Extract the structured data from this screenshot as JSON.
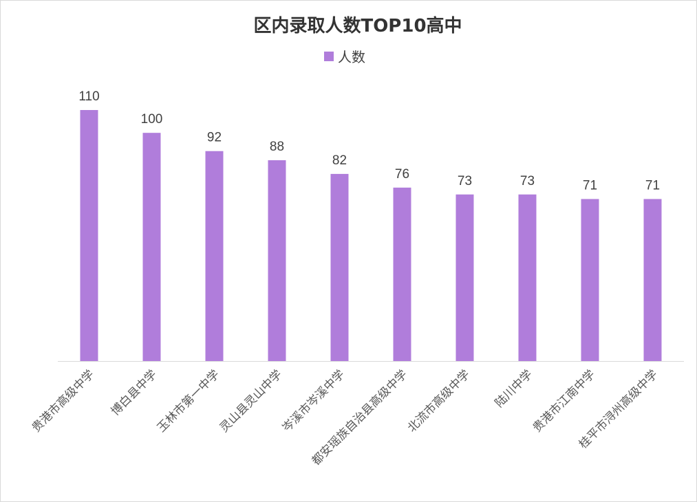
{
  "chart_data": {
    "type": "bar",
    "title": "区内录取人数TOP10高中",
    "legend": {
      "position": "top",
      "entries": [
        "人数"
      ]
    },
    "categories": [
      "贵港市高级中学",
      "博白县中学",
      "玉林市第一中学",
      "灵山县灵山中学",
      "岑溪市岑溪中学",
      "都安瑶族自治县高级中学",
      "北流市高级中学",
      "陆川中学",
      "贵港市江南中学",
      "桂平市浔州高级中学"
    ],
    "series": [
      {
        "name": "人数",
        "color": "#b07ddb",
        "values": [
          110,
          100,
          92,
          88,
          82,
          76,
          73,
          73,
          71,
          71
        ]
      }
    ],
    "ylim": [
      0,
      110
    ],
    "grid": false,
    "data_labels": true
  }
}
